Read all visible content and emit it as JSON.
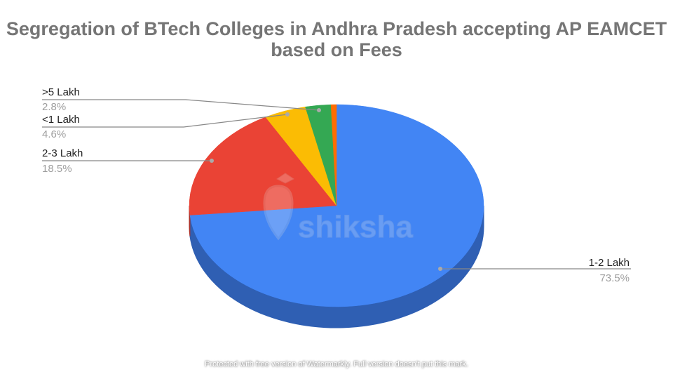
{
  "chart_data": {
    "type": "pie",
    "three_d": true,
    "title": "Segregation of BTech Colleges in Andhra Pradesh accepting AP EAMCET based on Fees",
    "slices": [
      {
        "label": "1-2 Lakh",
        "value": 73.5,
        "value_label": "73.5%",
        "color": "#4285f4",
        "side_color": "#2f5fb3"
      },
      {
        "label": "2-3 Lakh",
        "value": 18.5,
        "value_label": "18.5%",
        "color": "#ea4335",
        "side_color": "#a8302a"
      },
      {
        "label": "<1 Lakh",
        "value": 4.6,
        "value_label": "4.6%",
        "color": "#fbbc04",
        "side_color": "#b38600"
      },
      {
        "label": ">5 Lakh",
        "value": 2.8,
        "value_label": "2.8%",
        "color": "#34a853",
        "side_color": "#25783b"
      },
      {
        "label": "",
        "value": 0.6,
        "value_label": "",
        "color": "#ff6d01",
        "side_color": "#b34d01"
      }
    ],
    "legend": "none"
  },
  "watermark_logo": "shiksha",
  "footer_watermark": "Protected with free version of Watermarkly. Full version doesn't put this mark."
}
